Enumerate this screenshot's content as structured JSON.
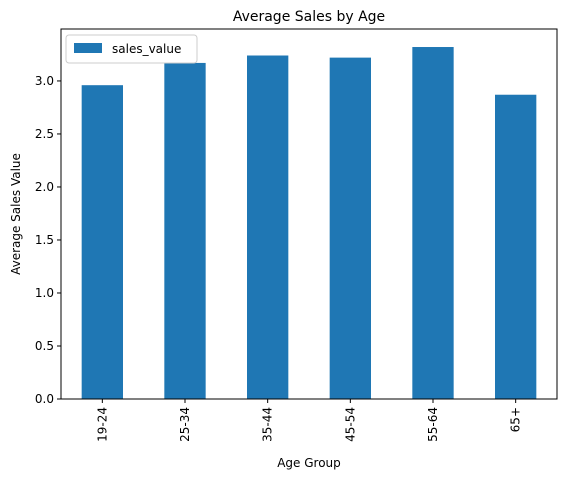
{
  "chart_data": {
    "type": "bar",
    "title": "Average Sales by Age",
    "xlabel": "Age Group",
    "ylabel": "Average Sales Value",
    "categories": [
      "19-24",
      "25-34",
      "35-44",
      "45-54",
      "55-64",
      "65+"
    ],
    "series": [
      {
        "name": "sales_value",
        "values": [
          2.96,
          3.17,
          3.24,
          3.22,
          3.32,
          2.87
        ],
        "color": "#1f77b4"
      }
    ],
    "ylim": [
      0,
      3.49
    ],
    "yticks": [
      "0.0",
      "0.5",
      "1.0",
      "1.5",
      "2.0",
      "2.5",
      "3.0"
    ],
    "grid": false,
    "legend_position": "top-left"
  }
}
